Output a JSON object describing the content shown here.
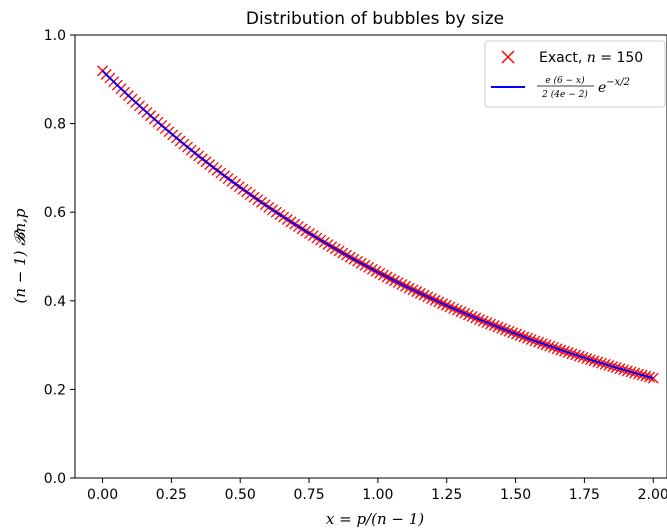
{
  "chart_data": {
    "type": "line",
    "title": "Distribution of bubbles by size",
    "xlabel": "x = p/(n − 1)",
    "ylabel": "(n − 1) 𝓑n,p",
    "xlim": [
      -0.1,
      2.05
    ],
    "ylim": [
      0.0,
      1.0
    ],
    "x_ticks": [
      "0.00",
      "0.25",
      "0.50",
      "0.75",
      "1.00",
      "1.25",
      "1.50",
      "1.75",
      "2.00"
    ],
    "y_ticks": [
      "0.0",
      "0.2",
      "0.4",
      "0.6",
      "0.8",
      "1.0"
    ],
    "grid": false,
    "legend_position": "top-right",
    "series": [
      {
        "name": "Exact, n = 150",
        "marker": "x",
        "color": "#ff0000",
        "n_points": 150,
        "x_range": [
          0.0,
          2.0
        ],
        "y_start": 0.92,
        "y_end": 0.23
      },
      {
        "name": "e(6 − x) / (2(4e − 2)) e^(−x/2)",
        "line": "solid",
        "color": "#0000ff",
        "x_range": [
          0.0,
          2.0
        ],
        "y_start": 0.92,
        "y_end": 0.23
      }
    ]
  },
  "legend": {
    "exact_prefix": "Exact, ",
    "exact_n": "n",
    "exact_suffix": " = 150",
    "formula_num": "e (6 − x)",
    "formula_den": "2 (4e − 2)",
    "formula_exp_base": "e",
    "formula_exp": "−x/2"
  }
}
